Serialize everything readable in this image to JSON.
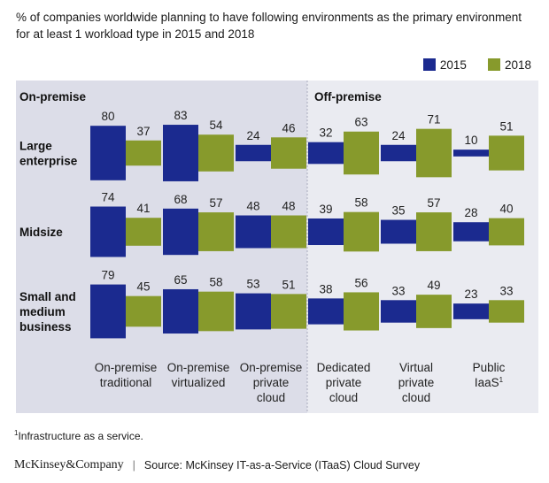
{
  "title": "% of companies worldwide planning to have following environments as the primary environment for at least 1 workload type in 2015 and 2018",
  "colors": {
    "y2015": "#1b2a8f",
    "y2018": "#879a2c",
    "panel_on": "#dcdde8",
    "panel_off": "#eaebf1"
  },
  "footnote": {
    "marker": "1",
    "text": "Infrastructure as a service."
  },
  "footer": {
    "brand": "McKinsey&Company",
    "separator": "|",
    "source": "Source: McKinsey IT-as-a-Service (ITaaS) Cloud Survey"
  },
  "chart_data": {
    "type": "bar",
    "title": "% of companies worldwide planning to have following environments as the primary environment for at least 1 workload type in 2015 and 2018",
    "legend": [
      "2015",
      "2018"
    ],
    "legend_position": "top-right",
    "groups": [
      {
        "label": "On-premise",
        "categories": [
          0,
          1,
          2
        ]
      },
      {
        "label": "Off-premise",
        "categories": [
          3,
          4,
          5
        ]
      }
    ],
    "categories": [
      {
        "lines": [
          "On-premise",
          "traditional"
        ]
      },
      {
        "lines": [
          "On-premise",
          "virtualized"
        ]
      },
      {
        "lines": [
          "On-premise",
          "private",
          "cloud"
        ]
      },
      {
        "lines": [
          "Dedicated",
          "private",
          "cloud"
        ]
      },
      {
        "lines": [
          "Virtual",
          "private",
          "cloud"
        ]
      },
      {
        "lines": [
          "Public",
          "IaaS"
        ],
        "sup": "1"
      }
    ],
    "rows": [
      {
        "lines": [
          "Large",
          "enterprise"
        ],
        "series": [
          {
            "name": "2015",
            "values": [
              80,
              83,
              24,
              32,
              24,
              10
            ]
          },
          {
            "name": "2018",
            "values": [
              37,
              54,
              46,
              63,
              71,
              51
            ]
          }
        ]
      },
      {
        "lines": [
          "Midsize"
        ],
        "series": [
          {
            "name": "2015",
            "values": [
              74,
              68,
              48,
              39,
              35,
              28
            ]
          },
          {
            "name": "2018",
            "values": [
              41,
              57,
              48,
              58,
              57,
              40
            ]
          }
        ]
      },
      {
        "lines": [
          "Small and",
          "medium",
          "business"
        ],
        "series": [
          {
            "name": "2015",
            "values": [
              79,
              65,
              53,
              38,
              33,
              23
            ]
          },
          {
            "name": "2018",
            "values": [
              45,
              58,
              51,
              56,
              49,
              33
            ]
          }
        ]
      }
    ],
    "ylim": [
      0,
      100
    ]
  }
}
